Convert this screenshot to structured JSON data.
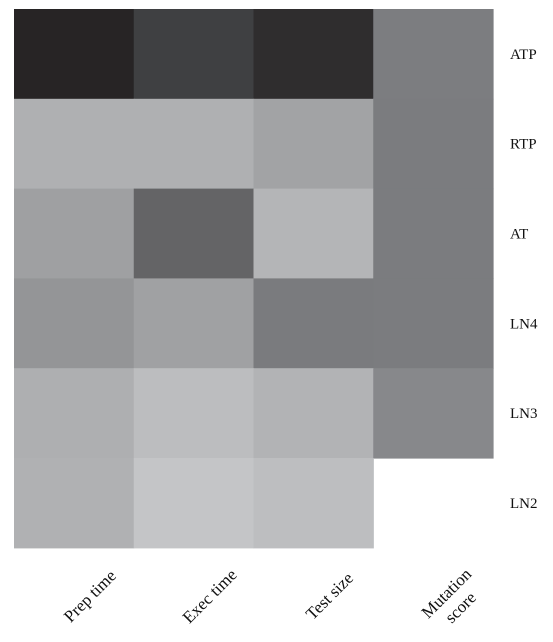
{
  "chart_data": {
    "type": "heatmap",
    "rows": [
      "ATP",
      "RTP",
      "AT",
      "LN4",
      "LN3",
      "LN2"
    ],
    "columns": [
      "Prep time",
      "Exec time",
      "Test size",
      "Mutation score"
    ],
    "cell_colors": [
      [
        "#272425",
        "#3f4042",
        "#2f2d2e",
        "#7c7d80"
      ],
      [
        "#afb0b2",
        "#afb0b2",
        "#a2a3a5",
        "#7b7c7f"
      ],
      [
        "#9fa0a2",
        "#646466",
        "#b4b5b7",
        "#7b7c7f"
      ],
      [
        "#949597",
        "#a0a1a3",
        "#7a7b7e",
        "#7b7c7f"
      ],
      [
        "#aeafb1",
        "#bcbdbf",
        "#b2b3b5",
        "#87888b"
      ],
      [
        "#b0b1b3",
        "#c4c5c7",
        "#bdbec0",
        null
      ]
    ]
  }
}
